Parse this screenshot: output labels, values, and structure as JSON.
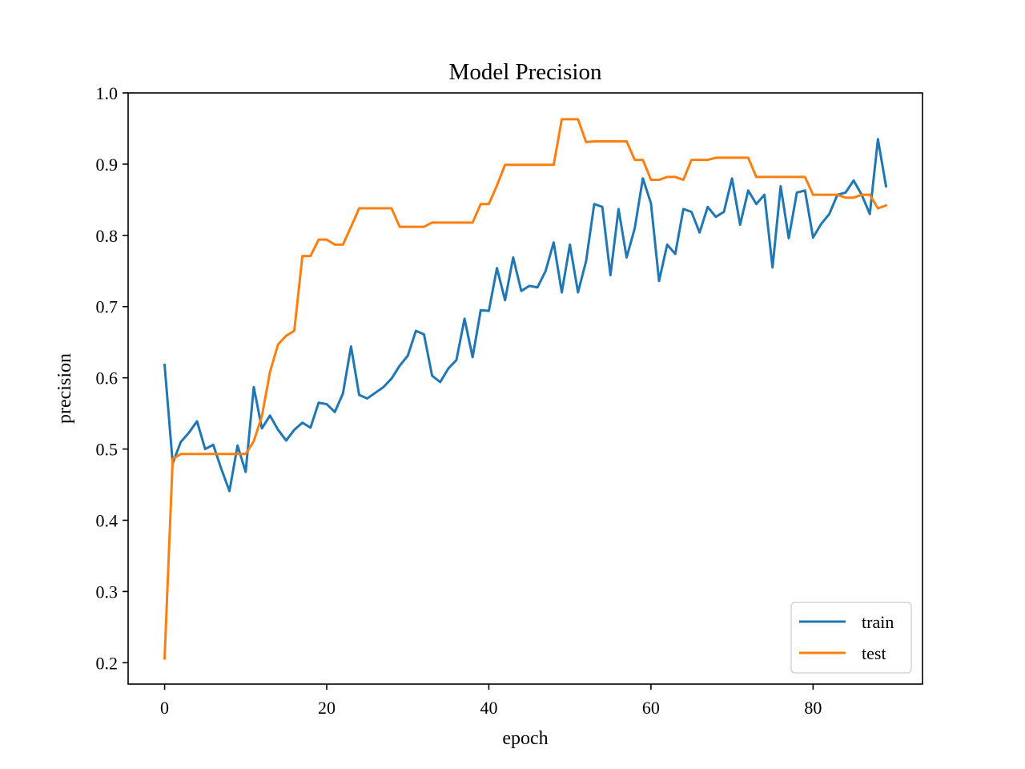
{
  "chart_data": {
    "type": "line",
    "title": "Model Precision",
    "xlabel": "epoch",
    "ylabel": "precision",
    "xlim": [
      -4.5,
      93.5
    ],
    "ylim": [
      0.17,
      1.0
    ],
    "xticks": [
      0,
      20,
      40,
      60,
      80
    ],
    "xtick_labels": [
      "0",
      "20",
      "40",
      "60",
      "80"
    ],
    "yticks": [
      0.2,
      0.3,
      0.4,
      0.5,
      0.6,
      0.7,
      0.8,
      0.9,
      1.0
    ],
    "ytick_labels": [
      "0.2",
      "0.3",
      "0.4",
      "0.5",
      "0.6",
      "0.7",
      "0.8",
      "0.9",
      "1.0"
    ],
    "grid": false,
    "legend_position": "lower-right",
    "series": [
      {
        "name": "train",
        "color": "#1f77b4",
        "values": [
          0.618,
          0.48,
          0.51,
          0.523,
          0.539,
          0.5,
          0.506,
          0.472,
          0.441,
          0.505,
          0.468,
          0.587,
          0.529,
          0.547,
          0.527,
          0.512,
          0.527,
          0.537,
          0.53,
          0.565,
          0.563,
          0.552,
          0.578,
          0.644,
          0.576,
          0.571,
          0.579,
          0.587,
          0.599,
          0.617,
          0.631,
          0.666,
          0.661,
          0.603,
          0.594,
          0.613,
          0.625,
          0.683,
          0.629,
          0.695,
          0.694,
          0.754,
          0.709,
          0.769,
          0.722,
          0.729,
          0.727,
          0.75,
          0.79,
          0.72,
          0.787,
          0.72,
          0.764,
          0.844,
          0.84,
          0.744,
          0.837,
          0.769,
          0.81,
          0.88,
          0.845,
          0.736,
          0.787,
          0.774,
          0.837,
          0.833,
          0.804,
          0.84,
          0.826,
          0.833,
          0.88,
          0.815,
          0.863,
          0.844,
          0.857,
          0.755,
          0.869,
          0.796,
          0.86,
          0.863,
          0.797,
          0.816,
          0.83,
          0.857,
          0.86,
          0.877,
          0.857,
          0.83,
          0.935,
          0.869
        ]
      },
      {
        "name": "test",
        "color": "#ff7f0e",
        "values": [
          0.206,
          0.486,
          0.493,
          0.493,
          0.493,
          0.493,
          0.493,
          0.493,
          0.493,
          0.493,
          0.493,
          0.511,
          0.546,
          0.608,
          0.647,
          0.659,
          0.666,
          0.771,
          0.771,
          0.794,
          0.794,
          0.787,
          0.787,
          0.812,
          0.838,
          0.838,
          0.838,
          0.838,
          0.838,
          0.812,
          0.812,
          0.812,
          0.812,
          0.818,
          0.818,
          0.818,
          0.818,
          0.818,
          0.818,
          0.844,
          0.844,
          0.87,
          0.899,
          0.899,
          0.899,
          0.899,
          0.899,
          0.899,
          0.899,
          0.963,
          0.963,
          0.963,
          0.931,
          0.932,
          0.932,
          0.932,
          0.932,
          0.932,
          0.906,
          0.906,
          0.878,
          0.878,
          0.882,
          0.882,
          0.878,
          0.906,
          0.906,
          0.906,
          0.909,
          0.909,
          0.909,
          0.909,
          0.909,
          0.882,
          0.882,
          0.882,
          0.882,
          0.882,
          0.882,
          0.882,
          0.857,
          0.857,
          0.857,
          0.857,
          0.853,
          0.853,
          0.857,
          0.857,
          0.838,
          0.842
        ]
      }
    ]
  }
}
